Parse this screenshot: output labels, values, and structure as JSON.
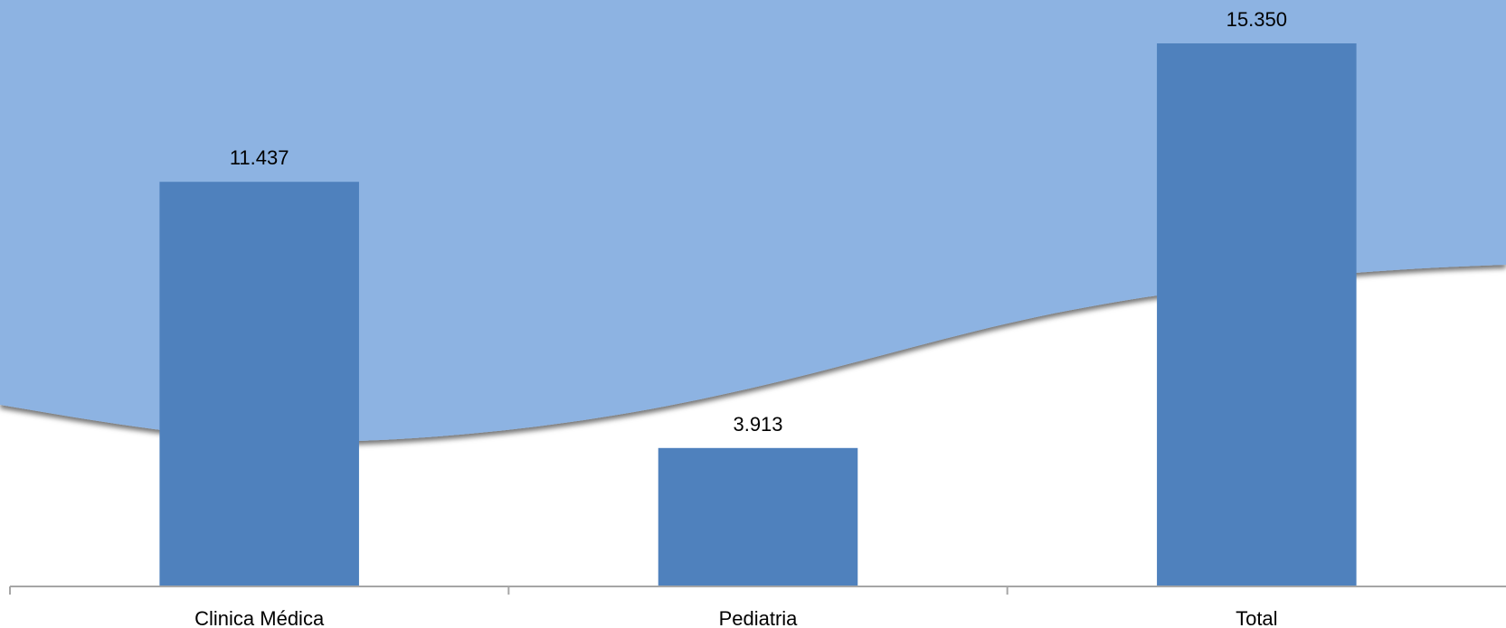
{
  "chart_data": {
    "type": "bar",
    "categories": [
      "Clinica Médica",
      "Pediatria",
      "Total"
    ],
    "values": [
      11437,
      3913,
      15350
    ],
    "value_labels": [
      "11.437",
      "3.913",
      "15.350"
    ],
    "title": "",
    "xlabel": "",
    "ylabel": "",
    "ylim": [
      0,
      15350
    ],
    "grid": false,
    "legend": "none",
    "colors": {
      "bar": "#4f81bd",
      "background_band": "#8db3e2",
      "axis": "#a6a6a6"
    }
  }
}
